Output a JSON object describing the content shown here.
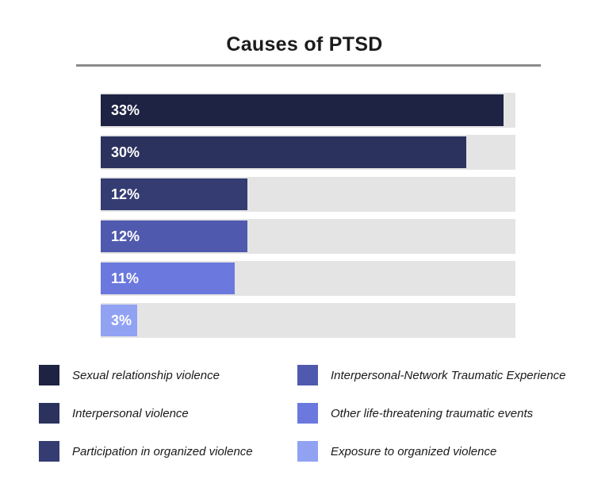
{
  "header": {
    "title": "Causes of PTSD"
  },
  "chart_data": {
    "type": "bar",
    "orientation": "horizontal",
    "title": "Causes of PTSD",
    "categories": [
      "Sexual relationship violence",
      "Interpersonal violence",
      "Participation in organized violence",
      "Interpersonal-Network Traumatic Experience",
      "Other life-threatening traumatic events",
      "Exposure to organized violence"
    ],
    "values": [
      33,
      30,
      12,
      12,
      11,
      3
    ],
    "labels": [
      "33%",
      "30%",
      "12%",
      "12%",
      "11%",
      "3%"
    ],
    "colors": [
      "#1e2343",
      "#2b325e",
      "#343c72",
      "#4f5aae",
      "#6b78de",
      "#91a2f3"
    ],
    "track_color": "#e4e4e4",
    "value_label_color": "#ffffff",
    "xlim": [
      0,
      34
    ],
    "grid": false,
    "legend_position": "bottom"
  }
}
